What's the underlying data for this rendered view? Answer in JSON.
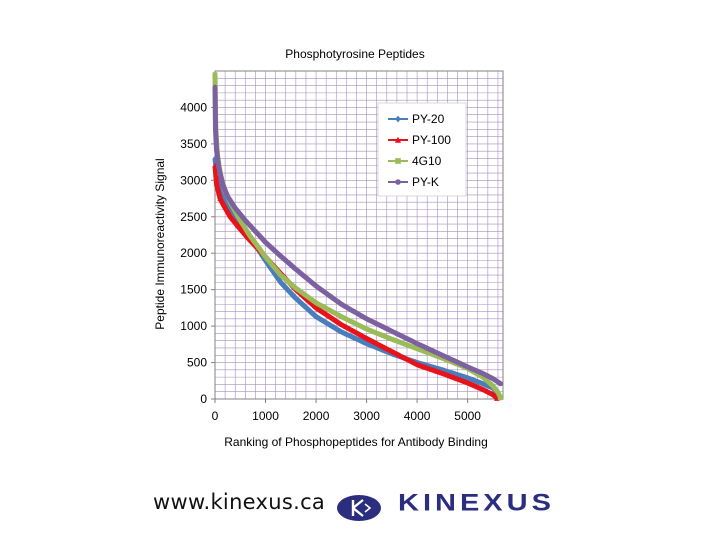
{
  "chart_data": {
    "type": "line",
    "title": "Phosphotyrosine Peptides",
    "xlabel": "Ranking of Phosphopeptides for Antibody Binding",
    "ylabel": "Peptide Immunoreactivity Signal",
    "xlim": [
      0,
      5700
    ],
    "ylim": [
      0,
      4500
    ],
    "x_ticks": [
      0,
      1000,
      2000,
      3000,
      4000,
      5000
    ],
    "y_ticks": [
      0,
      500,
      1000,
      1500,
      2000,
      2500,
      3000,
      3500,
      4000
    ],
    "x_tick_labels": [
      "0",
      "1000",
      "2000",
      "3000",
      "4000",
      "5000"
    ],
    "y_tick_labels": [
      "0",
      "500",
      "1000",
      "1500",
      "2000",
      "2500",
      "3000",
      "3500",
      "4000"
    ],
    "grid": true,
    "legend_position": "top-right",
    "series": [
      {
        "name": "PY-20",
        "color": "#4a7ebb",
        "marker": "diamond",
        "x": [
          0,
          30,
          100,
          200,
          300,
          500,
          700,
          1000,
          1300,
          1600,
          2000,
          2500,
          3000,
          3500,
          4000,
          4500,
          5000,
          5300,
          5500,
          5600
        ],
        "y": [
          3300,
          3100,
          2900,
          2750,
          2620,
          2420,
          2220,
          1900,
          1600,
          1380,
          1130,
          920,
          760,
          620,
          500,
          400,
          290,
          210,
          150,
          80
        ]
      },
      {
        "name": "PY-100",
        "color": "#e8121a",
        "marker": "triangle",
        "x": [
          0,
          30,
          100,
          200,
          300,
          500,
          700,
          1000,
          1300,
          1600,
          2000,
          2500,
          3000,
          3500,
          4000,
          4500,
          5000,
          5300,
          5500,
          5580
        ],
        "y": [
          3200,
          2950,
          2750,
          2620,
          2500,
          2330,
          2170,
          1950,
          1720,
          1500,
          1250,
          1020,
          830,
          650,
          470,
          350,
          220,
          130,
          60,
          10
        ]
      },
      {
        "name": "4G10",
        "color": "#9bbb59",
        "marker": "square",
        "x": [
          0,
          15,
          50,
          100,
          200,
          300,
          500,
          700,
          1000,
          1300,
          1600,
          2000,
          2500,
          3000,
          3500,
          4000,
          4500,
          5000,
          5300,
          5500,
          5600,
          5650
        ],
        "y": [
          4450,
          3700,
          3350,
          3100,
          2850,
          2700,
          2450,
          2230,
          1950,
          1700,
          1520,
          1320,
          1130,
          960,
          820,
          690,
          560,
          420,
          300,
          180,
          90,
          20
        ]
      },
      {
        "name": "PY-K",
        "color": "#7d60a0",
        "marker": "circle",
        "x": [
          0,
          10,
          30,
          70,
          150,
          250,
          400,
          600,
          800,
          1000,
          1300,
          1600,
          2000,
          2500,
          3000,
          3500,
          4000,
          4500,
          5000,
          5300,
          5500,
          5650
        ],
        "y": [
          4280,
          3700,
          3420,
          3200,
          2950,
          2780,
          2620,
          2450,
          2300,
          2150,
          1960,
          1780,
          1550,
          1300,
          1100,
          930,
          760,
          600,
          440,
          350,
          280,
          210
        ]
      }
    ]
  },
  "footer": {
    "url": "www.kinexus.ca",
    "brand": "KINEXUS",
    "brand_color": "#2b2d7f",
    "logo_icon": "kinexus-k-logo-icon"
  }
}
